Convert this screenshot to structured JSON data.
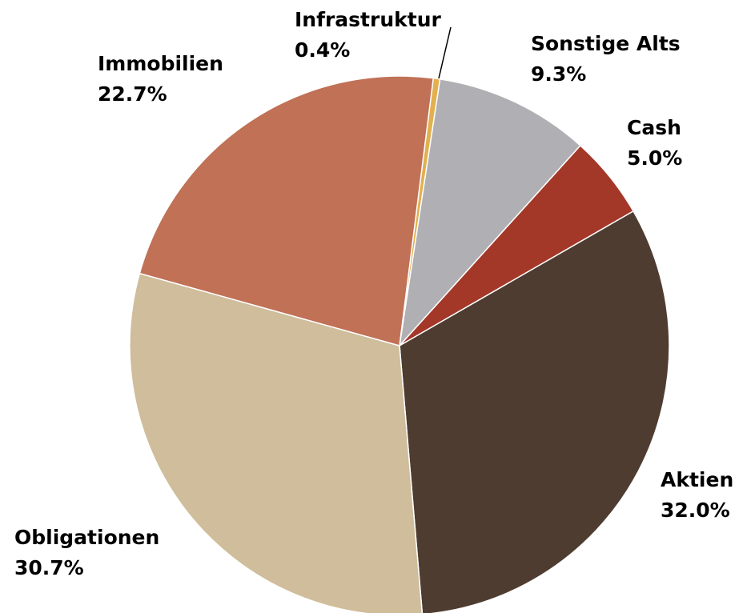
{
  "chart_data": {
    "type": "pie",
    "categories": [
      "Infrastruktur",
      "Sonstige Alts",
      "Cash",
      "Aktien",
      "Obligationen",
      "Immobilien"
    ],
    "values": [
      0.4,
      9.3,
      5.0,
      32.0,
      30.7,
      22.7
    ],
    "value_labels": [
      "0.4%",
      "9.3%",
      "5.0%",
      "32.0%",
      "30.7%",
      "22.7%"
    ],
    "colors": [
      "#e2b04e",
      "#b0b0b4",
      "#a33828",
      "#4e3c31",
      "#cfbd9b",
      "#c07156"
    ]
  }
}
